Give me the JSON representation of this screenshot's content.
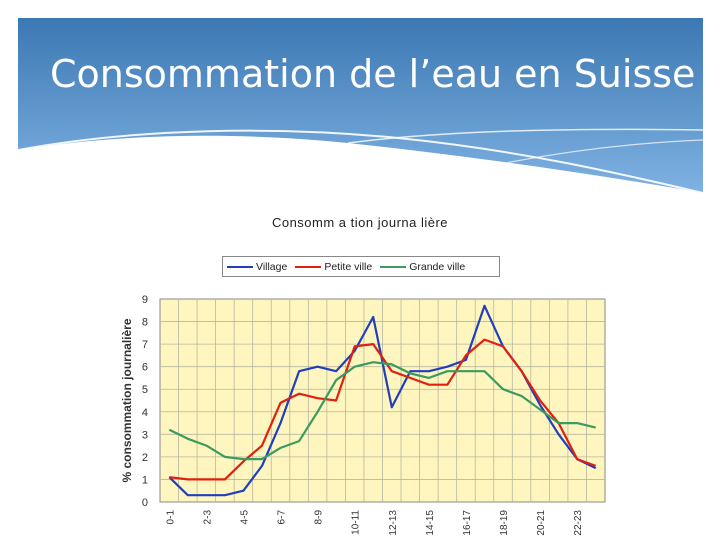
{
  "slide": {
    "title": "Consommation de l’eau en Suisse"
  },
  "colors": {
    "banner_top": "#3c78b3",
    "banner_bottom": "#7fb2e2",
    "plot_bg": "#fff6bf",
    "grid": "#b7b7a0"
  },
  "chart_data": {
    "type": "line",
    "title": "Consomm a tion journa lière",
    "ylabel": "% consommation journalière",
    "xlabel": "",
    "ylim": [
      0,
      9
    ],
    "yticks": [
      "0",
      "1",
      "2",
      "3",
      "4",
      "5",
      "6",
      "7",
      "8",
      "9"
    ],
    "x": [
      "0-1",
      "1-2",
      "2-3",
      "3-4",
      "4-5",
      "5-6",
      "6-7",
      "7-8",
      "8-9",
      "9-10",
      "10-11",
      "11-12",
      "12-13",
      "13-14",
      "14-15",
      "15-16",
      "16-17",
      "17-18",
      "18-19",
      "19-20",
      "20-21",
      "21-22",
      "22-23",
      "23-24"
    ],
    "xtick_labels": [
      "0-1",
      "2-3",
      "4-5",
      "6-7",
      "8-9",
      "10-11",
      "12-13",
      "14-15",
      "16-17",
      "18-19",
      "20-21",
      "22-23"
    ],
    "legend_position": "top",
    "grid": true,
    "series": [
      {
        "name": "Village",
        "color": "#1f3fbf",
        "values": [
          1.1,
          0.3,
          0.3,
          0.3,
          0.5,
          1.6,
          3.5,
          5.8,
          6.0,
          5.8,
          6.7,
          8.2,
          4.2,
          5.8,
          5.8,
          6.0,
          6.3,
          8.7,
          6.9,
          5.8,
          4.3,
          3.0,
          1.9,
          1.5
        ]
      },
      {
        "name": "Petite ville",
        "color": "#e02010",
        "values": [
          1.1,
          1.0,
          1.0,
          1.0,
          1.8,
          2.5,
          4.4,
          4.8,
          4.6,
          4.5,
          6.9,
          7.0,
          5.8,
          5.5,
          5.2,
          5.2,
          6.5,
          7.2,
          6.9,
          5.8,
          4.5,
          3.5,
          1.9,
          1.6
        ]
      },
      {
        "name": "Grande ville",
        "color": "#3a9a60",
        "values": [
          3.2,
          2.8,
          2.5,
          2.0,
          1.9,
          1.9,
          2.4,
          2.7,
          4.0,
          5.4,
          6.0,
          6.2,
          6.1,
          5.7,
          5.5,
          5.8,
          5.8,
          5.8,
          5.0,
          4.7,
          4.1,
          3.5,
          3.5,
          3.3
        ]
      }
    ]
  }
}
